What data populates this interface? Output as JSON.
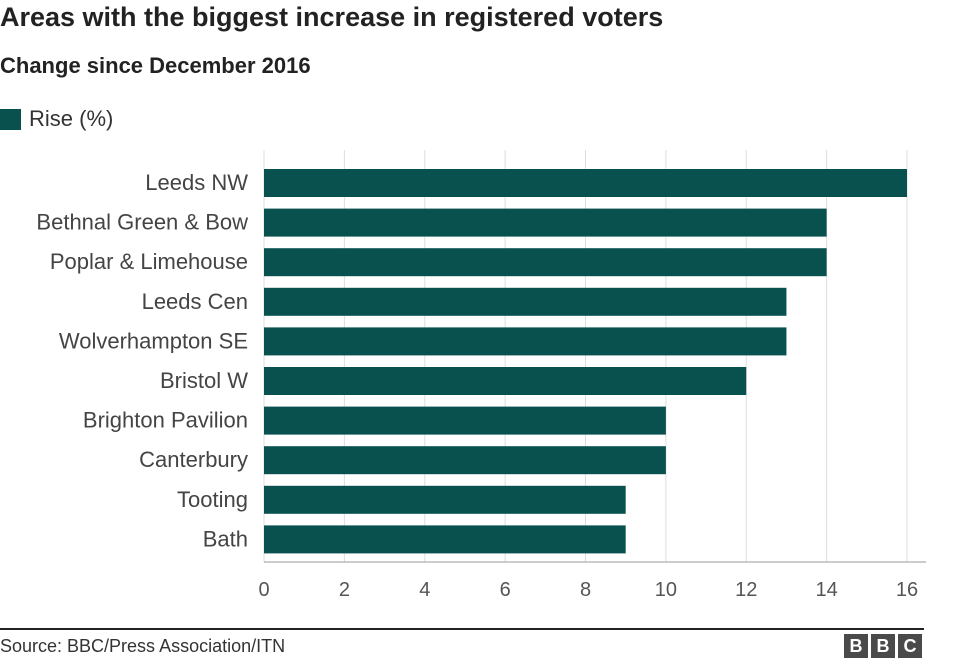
{
  "header": {
    "title": "Areas with the biggest increase in registered voters",
    "subtitle": "Change since December 2016"
  },
  "legend": {
    "label": "Rise (%)",
    "color": "#08514f"
  },
  "footer": {
    "source": "Source: BBC/Press Association/ITN",
    "logo": [
      "B",
      "B",
      "C"
    ]
  },
  "chart_data": {
    "type": "bar",
    "orientation": "horizontal",
    "categories": [
      "Leeds NW",
      "Bethnal Green & Bow",
      "Poplar & Limehouse",
      "Leeds Cen",
      "Wolverhampton SE",
      "Bristol W",
      "Brighton Pavilion",
      "Canterbury",
      "Tooting",
      "Bath"
    ],
    "series": [
      {
        "name": "Rise (%)",
        "values": [
          16,
          14,
          14,
          13,
          13,
          12,
          10,
          10,
          9,
          9
        ],
        "color": "#08514f"
      }
    ],
    "title": "Areas with the biggest increase in registered voters",
    "subtitle": "Change since December 2016",
    "xlabel": "",
    "ylabel": "",
    "xlim": [
      0,
      16
    ],
    "xticks": [
      0,
      2,
      4,
      6,
      8,
      10,
      12,
      14,
      16
    ],
    "grid": true,
    "legend_position": "top-left"
  }
}
